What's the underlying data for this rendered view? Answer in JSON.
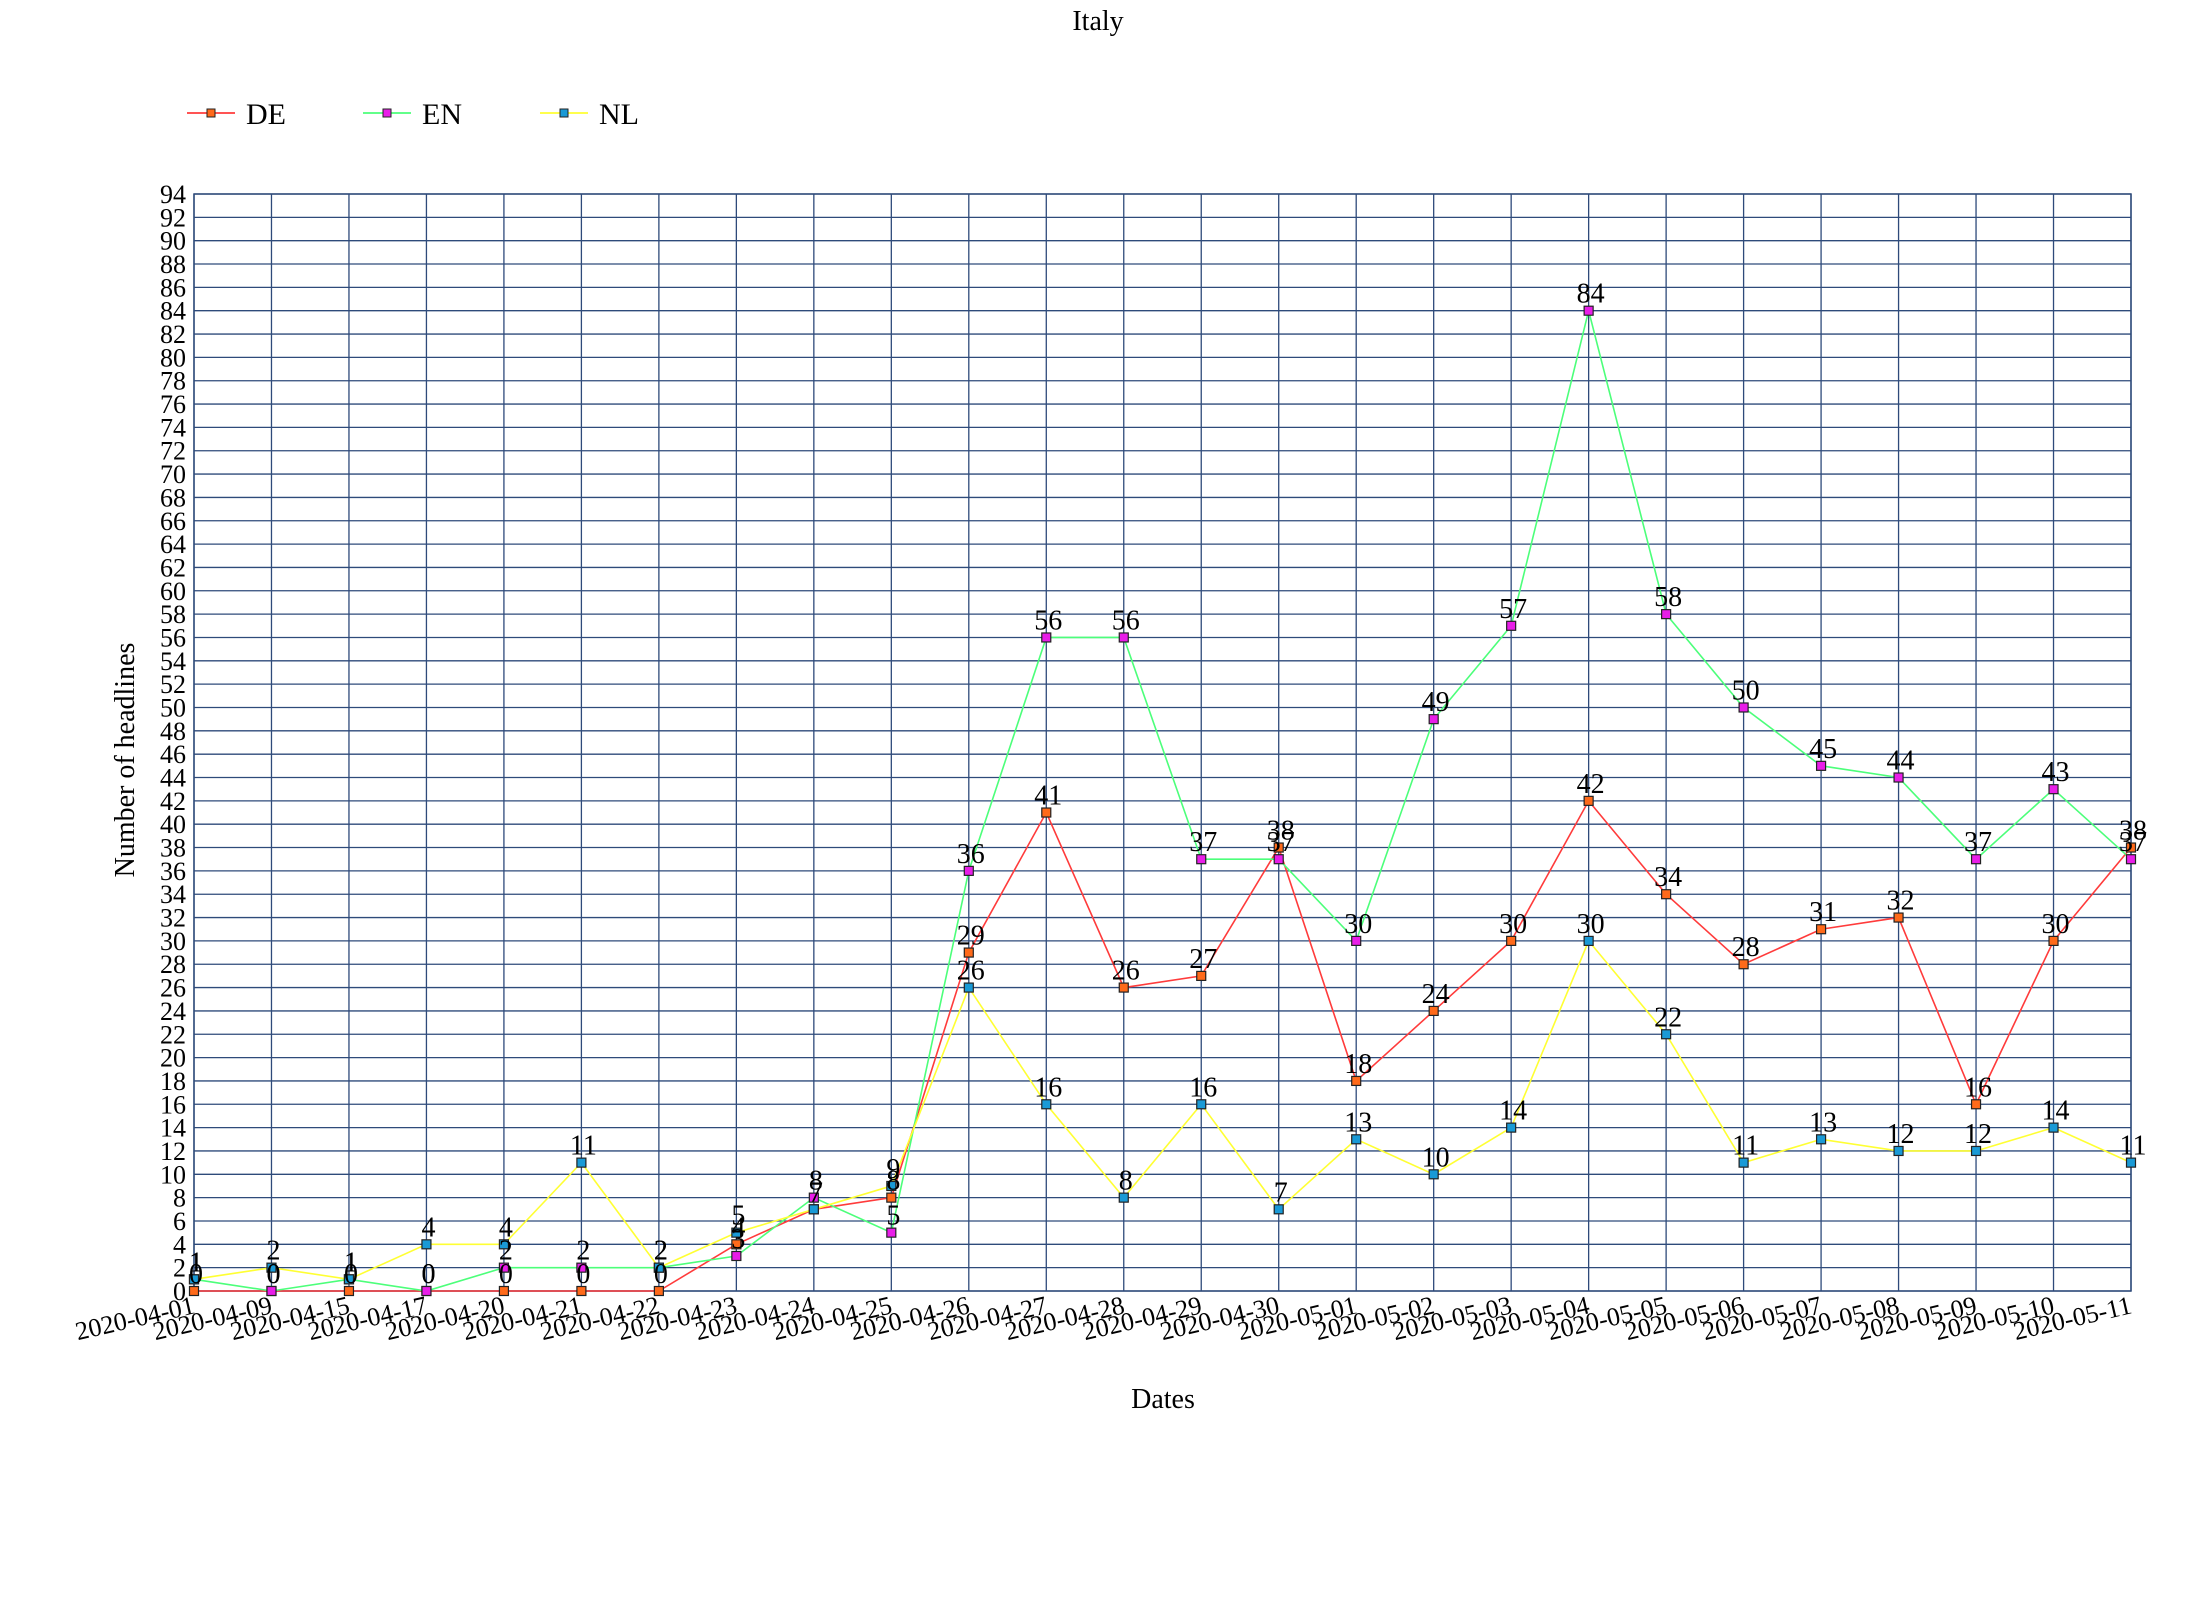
{
  "chart_data": {
    "type": "line",
    "title": "Italy",
    "xlabel": "Dates",
    "ylabel": "Number of headlines",
    "ylim": [
      0,
      94
    ],
    "ytick_step": 2,
    "grid": true,
    "legend_position": "top-left",
    "categories": [
      "2020-04-01",
      "2020-04-09",
      "2020-04-15",
      "2020-04-17",
      "2020-04-20",
      "2020-04-21",
      "2020-04-22",
      "2020-04-23",
      "2020-04-24",
      "2020-04-25",
      "2020-04-26",
      "2020-04-27",
      "2020-04-28",
      "2020-04-29",
      "2020-04-30",
      "2020-05-01",
      "2020-05-02",
      "2020-05-03",
      "2020-05-04",
      "2020-05-05",
      "2020-05-06",
      "2020-05-07",
      "2020-05-08",
      "2020-05-09",
      "2020-05-10",
      "2020-05-11"
    ],
    "series": [
      {
        "name": "DE",
        "line_color": "#ff3b3b",
        "marker_color": "#ff6a1a",
        "values": [
          0,
          0,
          0,
          0,
          0,
          0,
          0,
          4,
          7,
          8,
          29,
          41,
          26,
          27,
          38,
          18,
          24,
          30,
          42,
          34,
          28,
          31,
          32,
          16,
          30,
          38
        ]
      },
      {
        "name": "EN",
        "line_color": "#4cff7a",
        "marker_color": "#e81ee8",
        "values": [
          1,
          0,
          1,
          0,
          2,
          2,
          2,
          3,
          8,
          5,
          36,
          56,
          56,
          37,
          37,
          30,
          49,
          57,
          84,
          58,
          50,
          45,
          44,
          37,
          43,
          37
        ]
      },
      {
        "name": "NL",
        "line_color": "#ffff33",
        "marker_color": "#1a9ad6",
        "values": [
          1,
          2,
          1,
          4,
          4,
          11,
          2,
          5,
          7,
          9,
          26,
          16,
          8,
          16,
          7,
          13,
          10,
          14,
          30,
          22,
          11,
          13,
          12,
          12,
          14,
          11
        ]
      }
    ]
  }
}
